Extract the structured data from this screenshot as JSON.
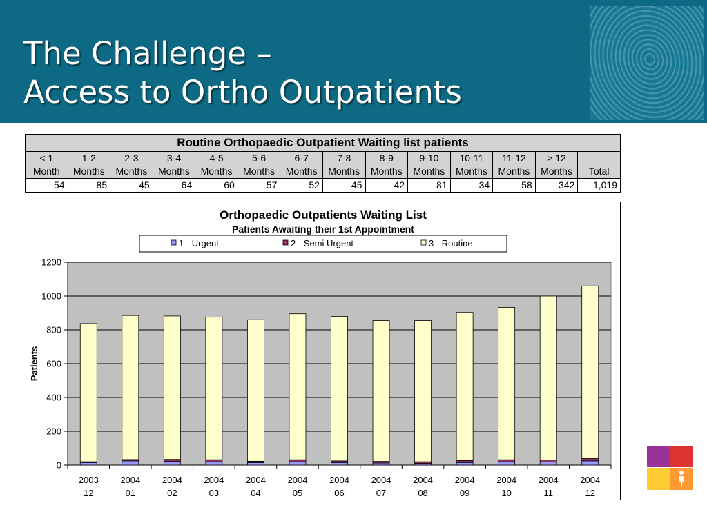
{
  "slide": {
    "title_line1": "The Challenge –",
    "title_line2": "Access to Ortho Outpatients"
  },
  "table": {
    "caption": "Routine Orthopaedic Outpatient Waiting list patients",
    "columns": [
      {
        "top": "< 1",
        "bottom": "Month",
        "value": "54"
      },
      {
        "top": "1-2",
        "bottom": "Months",
        "value": "85"
      },
      {
        "top": "2-3",
        "bottom": "Months",
        "value": "45"
      },
      {
        "top": "3-4",
        "bottom": "Months",
        "value": "64"
      },
      {
        "top": "4-5",
        "bottom": "Months",
        "value": "60"
      },
      {
        "top": "5-6",
        "bottom": "Months",
        "value": "57"
      },
      {
        "top": "6-7",
        "bottom": "Months",
        "value": "52"
      },
      {
        "top": "7-8",
        "bottom": "Months",
        "value": "45"
      },
      {
        "top": "8-9",
        "bottom": "Months",
        "value": "42"
      },
      {
        "top": "9-10",
        "bottom": "Months",
        "value": "81"
      },
      {
        "top": "10-11",
        "bottom": "Months",
        "value": "34"
      },
      {
        "top": "11-12",
        "bottom": "Months",
        "value": "58"
      },
      {
        "top": "> 12",
        "bottom": "Months",
        "value": "342"
      },
      {
        "top": "",
        "bottom": "Total",
        "value": "1,019"
      }
    ]
  },
  "chart_data": {
    "type": "bar",
    "stacked": true,
    "title": "Orthopaedic Outpatients Waiting List",
    "subtitle": "Patients Awaiting their 1st Appointment",
    "xlabel": "",
    "ylabel": "Patients",
    "ylim": [
      0,
      1200
    ],
    "yticks": [
      0,
      200,
      400,
      600,
      800,
      1000,
      1200
    ],
    "grid": true,
    "legend_position": "top",
    "categories": [
      [
        "2003",
        "12"
      ],
      [
        "2004",
        "01"
      ],
      [
        "2004",
        "02"
      ],
      [
        "2004",
        "03"
      ],
      [
        "2004",
        "04"
      ],
      [
        "2004",
        "05"
      ],
      [
        "2004",
        "06"
      ],
      [
        "2004",
        "07"
      ],
      [
        "2004",
        "08"
      ],
      [
        "2004",
        "09"
      ],
      [
        "2004",
        "10"
      ],
      [
        "2004",
        "11"
      ],
      [
        "2004",
        "12"
      ]
    ],
    "series": [
      {
        "name": "1 - Urgent",
        "color": "#9999ff",
        "values": [
          15,
          25,
          22,
          20,
          15,
          20,
          15,
          12,
          10,
          15,
          20,
          18,
          25
        ]
      },
      {
        "name": "2 - Semi Urgent",
        "color": "#993366",
        "values": [
          5,
          8,
          12,
          12,
          8,
          12,
          10,
          10,
          10,
          12,
          12,
          12,
          15
        ]
      },
      {
        "name": "3 - Routine",
        "color": "#ffffcc",
        "values": [
          817,
          852,
          848,
          843,
          837,
          863,
          855,
          833,
          835,
          876,
          901,
          970,
          1020
        ]
      }
    ],
    "colors": {
      "plot_background": "#c0c0c0",
      "gridline": "#000000"
    }
  },
  "theme": {
    "header_background": "#0e6a84",
    "logo_colors": [
      "#993399",
      "#dd3333",
      "#ffcc33",
      "#ff9933"
    ]
  }
}
